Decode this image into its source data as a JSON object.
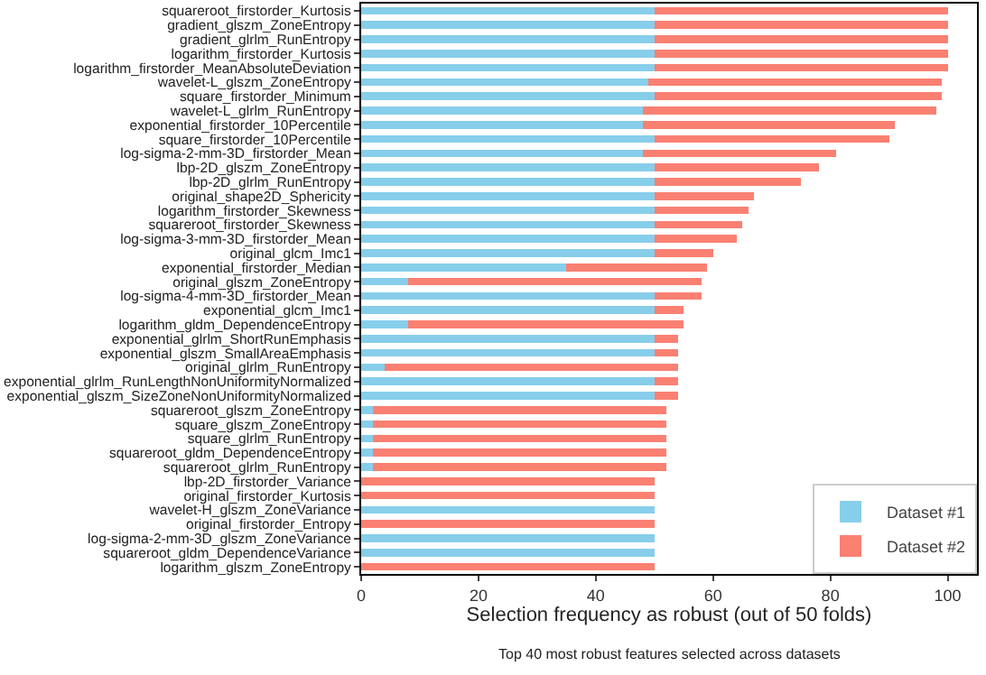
{
  "chart_data": {
    "type": "bar",
    "orientation": "horizontal",
    "stacked": true,
    "xlabel": "Selection frequency as robust (out of 50 folds)",
    "annotations": [
      "Top 40 most robust features selected across datasets"
    ],
    "categories": [
      "squareroot_firstorder_Kurtosis",
      "gradient_glszm_ZoneEntropy",
      "gradient_glrlm_RunEntropy",
      "logarithm_firstorder_Kurtosis",
      "logarithm_firstorder_MeanAbsoluteDeviation",
      "wavelet-L_glszm_ZoneEntropy",
      "square_firstorder_Minimum",
      "wavelet-L_glrlm_RunEntropy",
      "exponential_firstorder_10Percentile",
      "square_firstorder_10Percentile",
      "log-sigma-2-mm-3D_firstorder_Mean",
      "lbp-2D_glszm_ZoneEntropy",
      "lbp-2D_glrlm_RunEntropy",
      "original_shape2D_Sphericity",
      "logarithm_firstorder_Skewness",
      "squareroot_firstorder_Skewness",
      "log-sigma-3-mm-3D_firstorder_Mean",
      "original_glcm_Imc1",
      "exponential_firstorder_Median",
      "original_glszm_ZoneEntropy",
      "log-sigma-4-mm-3D_firstorder_Mean",
      "exponential_glcm_Imc1",
      "logarithm_gldm_DependenceEntropy",
      "exponential_glrlm_ShortRunEmphasis",
      "exponential_glszm_SmallAreaEmphasis",
      "original_glrlm_RunEntropy",
      "exponential_glrlm_RunLengthNonUniformityNormalized",
      "exponential_glszm_SizeZoneNonUniformityNormalized",
      "squareroot_glszm_ZoneEntropy",
      "square_glszm_ZoneEntropy",
      "square_glrlm_RunEntropy",
      "squareroot_gldm_DependenceEntropy",
      "squareroot_glrlm_RunEntropy",
      "lbp-2D_firstorder_Variance",
      "original_firstorder_Kurtosis",
      "wavelet-H_glszm_ZoneVariance",
      "original_firstorder_Entropy",
      "log-sigma-2-mm-3D_glszm_ZoneVariance",
      "squareroot_gldm_DependenceVariance",
      "logarithm_glszm_ZoneEntropy"
    ],
    "series": [
      {
        "name": "Dataset #1",
        "color": "#87ceeb",
        "values": [
          50,
          50,
          50,
          50,
          50,
          49,
          50,
          48,
          48,
          50,
          48,
          50,
          50,
          50,
          50,
          50,
          50,
          50,
          35,
          8,
          50,
          50,
          8,
          50,
          50,
          4,
          50,
          50,
          2,
          2,
          2,
          2,
          2,
          0,
          0,
          50,
          0,
          50,
          50,
          0
        ]
      },
      {
        "name": "Dataset #2",
        "color": "#fa8072",
        "values": [
          50,
          50,
          50,
          50,
          50,
          50,
          49,
          50,
          43,
          40,
          33,
          28,
          25,
          17,
          16,
          15,
          14,
          10,
          24,
          50,
          8,
          5,
          47,
          4,
          4,
          50,
          4,
          4,
          50,
          50,
          50,
          50,
          50,
          50,
          50,
          0,
          50,
          0,
          0,
          50
        ]
      }
    ],
    "xlim": [
      0,
      105
    ],
    "xticks": [
      0,
      20,
      40,
      60,
      80,
      100
    ],
    "grid": false,
    "legend": "bottom right"
  }
}
